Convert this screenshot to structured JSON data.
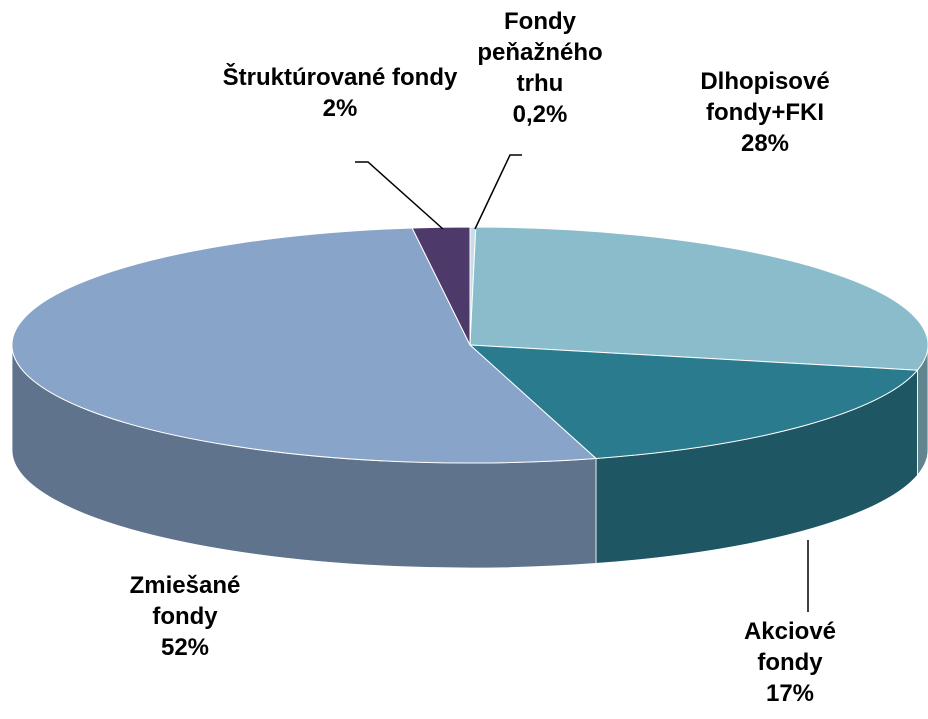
{
  "chart_data": {
    "type": "pie",
    "categories": [
      "Fondy peňažného trhu",
      "Dlhopisové fondy+FKI",
      "Akciové fondy",
      "Zmiešané fondy",
      "Štruktúrované fondy"
    ],
    "values": [
      0.2,
      28,
      17,
      52,
      2
    ],
    "value_labels": [
      "0,2%",
      "28%",
      "17%",
      "52%",
      "2%"
    ],
    "colors": [
      "#c9dbe8",
      "#8bbccc",
      "#2b7b8e",
      "#88a4c8",
      "#4e3a6a"
    ]
  }
}
